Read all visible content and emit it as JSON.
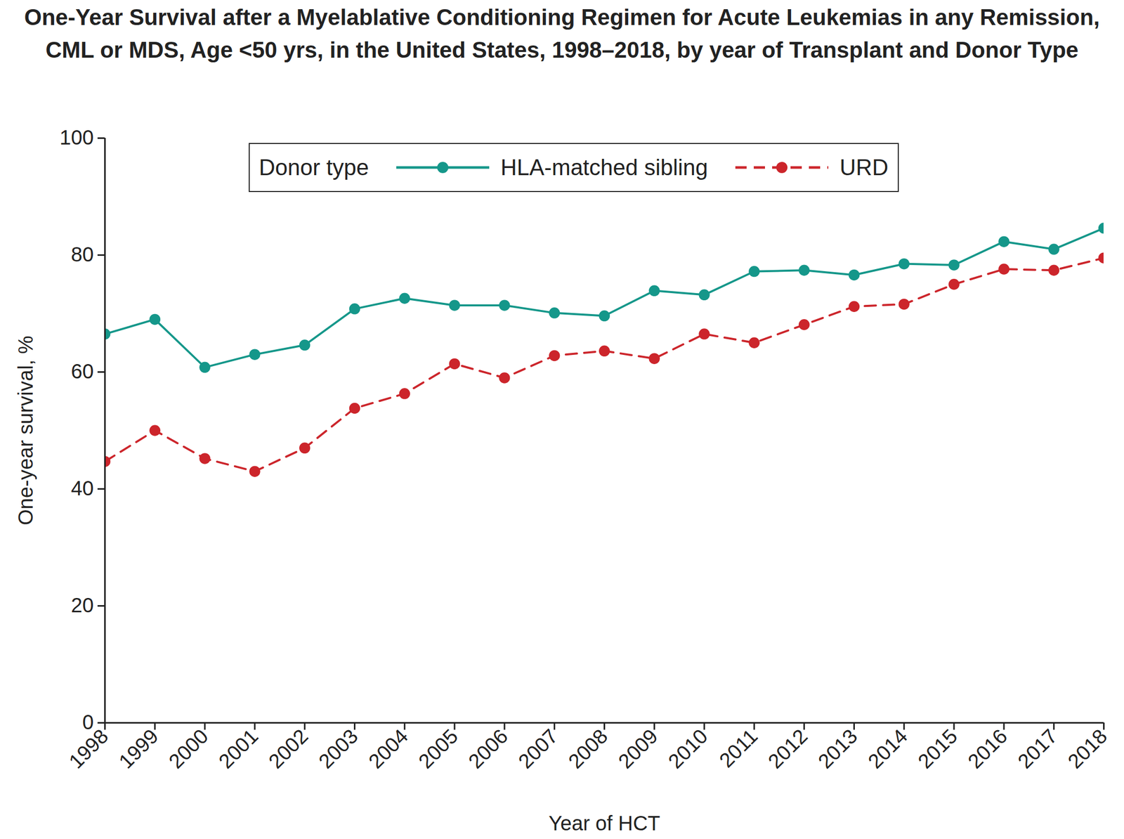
{
  "chart_data": {
    "type": "line",
    "title": "One-Year Survival after a Myelablative Conditioning Regimen for Acute Leukemias in any Remission, CML or MDS, Age <50 yrs, in the United States, 1998–2018, by year of Transplant and Donor Type",
    "x_label": "Year of HCT",
    "y_label": "One-year survival, %",
    "x": [
      1998,
      1999,
      2000,
      2001,
      2002,
      2003,
      2004,
      2005,
      2006,
      2007,
      2008,
      2009,
      2010,
      2011,
      2012,
      2013,
      2014,
      2015,
      2016,
      2017,
      2018
    ],
    "xlim": [
      1998,
      2018
    ],
    "xticks": [
      1998,
      1999,
      2000,
      2001,
      2002,
      2003,
      2004,
      2005,
      2006,
      2007,
      2008,
      2009,
      2010,
      2011,
      2012,
      2013,
      2014,
      2015,
      2016,
      2017,
      2018
    ],
    "ylim": [
      0,
      100
    ],
    "yticks": [
      0,
      20,
      40,
      60,
      80,
      100
    ],
    "grid": false,
    "legend": "top",
    "legend_title": "Donor type",
    "series": [
      {
        "name": "HLA-matched sibling",
        "color": "#15978a",
        "marker": "circle",
        "line_style": "solid",
        "values": [
          66.5,
          69.0,
          60.8,
          63.0,
          64.6,
          70.8,
          72.6,
          71.4,
          71.4,
          70.1,
          69.6,
          73.9,
          73.2,
          77.2,
          77.4,
          76.6,
          78.5,
          78.3,
          82.3,
          81.0,
          84.6
        ]
      },
      {
        "name": "URD",
        "color": "#cc252b",
        "marker": "circle",
        "line_style": "dashed",
        "values": [
          44.7,
          50.0,
          45.2,
          43.0,
          47.0,
          53.8,
          56.3,
          61.4,
          59.0,
          62.8,
          63.6,
          62.3,
          66.5,
          65.0,
          68.1,
          71.2,
          71.6,
          75.0,
          77.6,
          77.4,
          79.5
        ]
      }
    ]
  }
}
